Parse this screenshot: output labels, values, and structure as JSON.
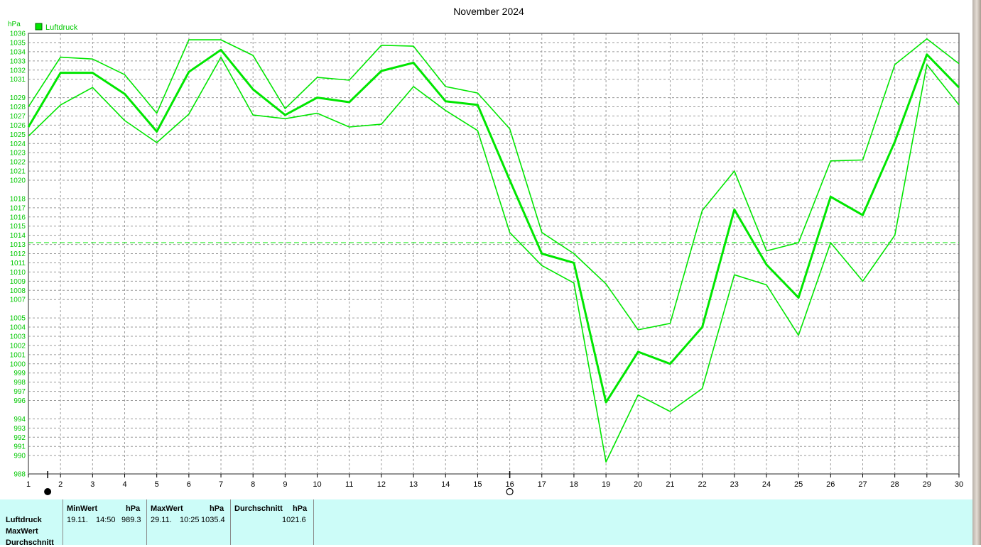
{
  "chart_data": {
    "type": "line",
    "title": "November 2024",
    "ylabel": "hPa",
    "ylim": [
      988,
      1036
    ],
    "xlim": [
      1,
      30
    ],
    "yticks": [
      1036,
      1035,
      1034,
      1033,
      1032,
      1031,
      1029,
      1028,
      1027,
      1026,
      1025,
      1024,
      1023,
      1022,
      1021,
      1020,
      1018,
      1017,
      1016,
      1015,
      1014,
      1013,
      1012,
      1011,
      1010,
      1009,
      1008,
      1007,
      1005,
      1004,
      1003,
      1002,
      1001,
      1000,
      999,
      998,
      997,
      996,
      994,
      993,
      992,
      991,
      990,
      988
    ],
    "xticks": [
      1,
      2,
      3,
      4,
      5,
      6,
      7,
      8,
      9,
      10,
      11,
      12,
      13,
      14,
      15,
      16,
      17,
      18,
      19,
      20,
      21,
      22,
      23,
      24,
      25,
      26,
      27,
      28,
      29,
      30
    ],
    "grid": true,
    "legend": [
      "Luftdruck"
    ],
    "reference_line": 1013.2,
    "x": [
      1,
      2,
      3,
      4,
      5,
      6,
      7,
      8,
      9,
      10,
      11,
      12,
      13,
      14,
      15,
      16,
      17,
      18,
      19,
      20,
      21,
      22,
      23,
      24,
      25,
      26,
      27,
      28,
      29,
      30
    ],
    "series": [
      {
        "name": "Luftdruck",
        "role": "max",
        "values": [
          1028.0,
          1033.4,
          1033.2,
          1031.5,
          1027.3,
          1035.3,
          1035.3,
          1033.6,
          1027.8,
          1031.2,
          1030.9,
          1034.7,
          1034.6,
          1030.2,
          1029.5,
          1025.6,
          1014.3,
          1012.0,
          1008.7,
          1003.7,
          1004.4,
          1016.7,
          1021.0,
          1012.3,
          1013.2,
          1022.1,
          1022.2,
          1032.6,
          1035.4,
          1032.7
        ]
      },
      {
        "name": "Luftdruck",
        "role": "avg",
        "values": [
          1025.8,
          1031.7,
          1031.7,
          1029.4,
          1025.3,
          1031.8,
          1034.2,
          1029.9,
          1027.1,
          1029.0,
          1028.5,
          1031.9,
          1032.8,
          1028.6,
          1028.2,
          1020.0,
          1012.0,
          1011.0,
          995.8,
          1001.3,
          1000.0,
          1004.0,
          1016.8,
          1010.8,
          1007.2,
          1018.2,
          1016.2,
          1024.2,
          1033.7,
          1030.1
        ]
      },
      {
        "name": "Luftdruck",
        "role": "min",
        "values": [
          1024.8,
          1028.2,
          1030.1,
          1026.5,
          1024.1,
          1027.2,
          1033.4,
          1027.1,
          1026.7,
          1027.3,
          1025.8,
          1026.1,
          1030.2,
          1027.6,
          1025.4,
          1014.3,
          1010.7,
          1008.8,
          989.3,
          996.6,
          994.8,
          997.3,
          1009.7,
          1008.6,
          1003.1,
          1013.2,
          1009.0,
          1014.0,
          1032.6,
          1028.2
        ]
      }
    ],
    "line_color": "#00e600",
    "markers": [
      {
        "label": "new-moon",
        "x": 1.6
      },
      {
        "label": "full-moon",
        "x": 16.0
      }
    ]
  },
  "stats": {
    "row_labels": [
      "Luftdruck",
      "MaxWert",
      "Durchschnitt"
    ],
    "min": {
      "header": "MinWert",
      "unit": "hPa",
      "date": "19.11.",
      "time": "14:50",
      "value": "989.3"
    },
    "max": {
      "header": "MaxWert",
      "unit": "hPa",
      "date": "29.11.",
      "time": "10:25",
      "value": "1035.4"
    },
    "avg": {
      "header": "Durchschnitt",
      "unit": "hPa",
      "value": "1021.6"
    }
  },
  "colors": {
    "line": "#00e600",
    "axis_text": "#00c800",
    "stats_bg": "#ccfcf8"
  }
}
